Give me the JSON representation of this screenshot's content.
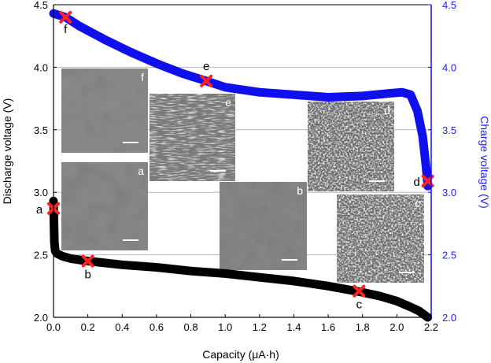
{
  "chart_data": {
    "type": "line",
    "xlabel": "Capacity (μA·h)",
    "ylabel": "Discharge  voltage (V)",
    "y2label": "Charge  voltage (V)",
    "xlim": [
      0.0,
      2.2
    ],
    "ylim": [
      2.0,
      4.5
    ],
    "y2lim": [
      2.0,
      4.5
    ],
    "x_ticks": [
      "0.0",
      "0.2",
      "0.4",
      "0.6",
      "0.8",
      "1.0",
      "1.2",
      "1.4",
      "1.6",
      "1.8",
      "2.0",
      "2.2"
    ],
    "y_ticks": [
      "2.0",
      "2.5",
      "3.0",
      "3.5",
      "4.0",
      "4.5"
    ],
    "y2_ticks": [
      "2.0",
      "2.5",
      "3.0",
      "3.5",
      "4.0",
      "4.5"
    ],
    "grid": true,
    "series": [
      {
        "axis": "left",
        "color": "#000000",
        "x": [
          0.0,
          0.005,
          0.01,
          0.02,
          0.05,
          0.1,
          0.2,
          0.4,
          0.6,
          0.8,
          1.0,
          1.2,
          1.4,
          1.6,
          1.8,
          1.9,
          2.0,
          2.05,
          2.1,
          2.13,
          2.16,
          2.18
        ],
        "y": [
          2.93,
          2.6,
          2.53,
          2.51,
          2.49,
          2.47,
          2.45,
          2.42,
          2.4,
          2.37,
          2.35,
          2.32,
          2.29,
          2.25,
          2.2,
          2.17,
          2.13,
          2.1,
          2.07,
          2.05,
          2.02,
          2.0
        ]
      },
      {
        "axis": "right",
        "color": "#1010ee",
        "x": [
          0.0,
          0.07,
          0.15,
          0.3,
          0.45,
          0.6,
          0.75,
          0.89,
          1.0,
          1.2,
          1.4,
          1.6,
          1.8,
          1.95,
          2.03,
          2.08,
          2.12,
          2.15,
          2.17,
          2.18
        ],
        "y": [
          4.43,
          4.4,
          4.33,
          4.22,
          4.12,
          4.03,
          3.95,
          3.89,
          3.84,
          3.8,
          3.78,
          3.76,
          3.77,
          3.79,
          3.8,
          3.78,
          3.65,
          3.45,
          3.2,
          3.05
        ]
      }
    ],
    "points": [
      {
        "label": "a",
        "x": 0.0,
        "y": 2.87,
        "axis": "left"
      },
      {
        "label": "b",
        "x": 0.2,
        "y": 2.45,
        "axis": "left"
      },
      {
        "label": "c",
        "x": 1.78,
        "y": 2.21,
        "axis": "left"
      },
      {
        "label": "d",
        "x": 2.18,
        "y": 3.09,
        "axis": "right"
      },
      {
        "label": "e",
        "x": 0.89,
        "y": 3.89,
        "axis": "right"
      },
      {
        "label": "f",
        "x": 0.07,
        "y": 4.4,
        "axis": "right"
      }
    ],
    "insets": [
      {
        "label": "f",
        "tone": "#8c8c8c",
        "texture": "smooth"
      },
      {
        "label": "a",
        "tone": "#8a8a8a",
        "texture": "smooth"
      },
      {
        "label": "e",
        "tone": "#7a7a7a",
        "texture": "streak"
      },
      {
        "label": "b",
        "tone": "#888888",
        "texture": "smooth"
      },
      {
        "label": "d",
        "tone": "#6a6a6a",
        "texture": "grain"
      },
      {
        "label": "c",
        "tone": "#6c6c6c",
        "texture": "grain"
      }
    ]
  }
}
